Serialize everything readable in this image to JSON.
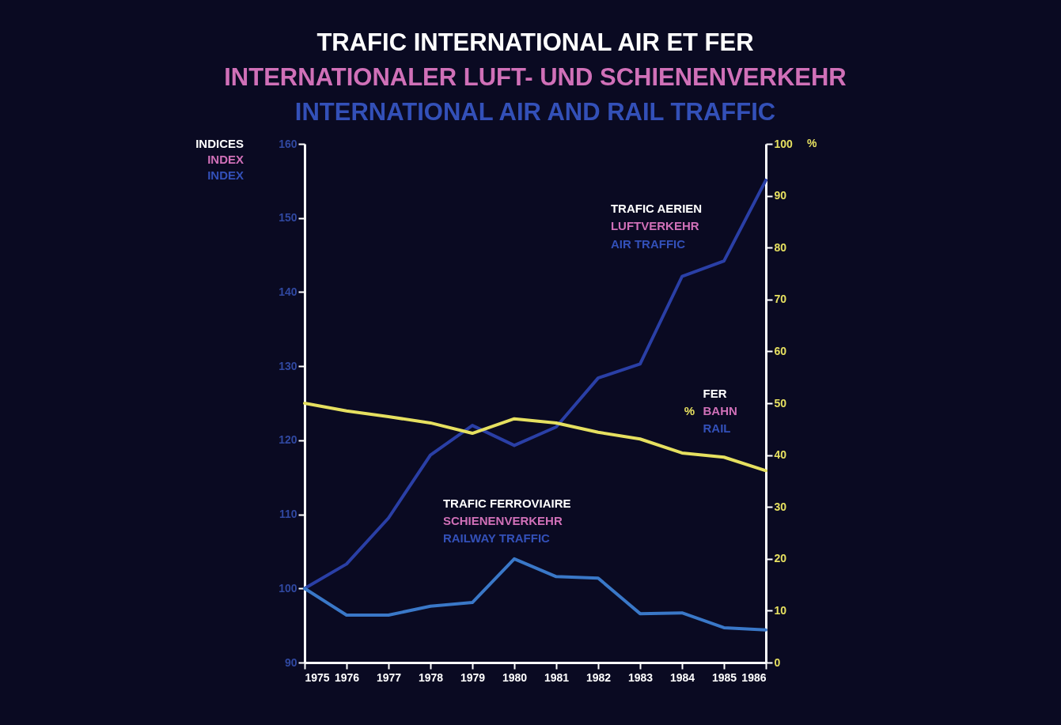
{
  "chart_data": {
    "type": "line",
    "title": "TRAFIC INTERNATIONAL AIR ET FER\nINTERNATIONALER LUFT- UND SCHIENENVERKEHR\nINTERNATIONAL AIR AND RAIL TRAFFIC",
    "ylabel": "INDICES\nINDEX\nINDEX",
    "y2label": "%",
    "x": [
      1975,
      1976,
      1977,
      1978,
      1979,
      1980,
      1981,
      1982,
      1983,
      1984,
      1985,
      1986
    ],
    "xlim": [
      1975,
      1986
    ],
    "xticks": [
      1975,
      1976,
      1977,
      1978,
      1979,
      1980,
      1981,
      1982,
      1983,
      1984,
      1985,
      1986
    ],
    "ylim": [
      90,
      160
    ],
    "yticks": [
      90,
      100,
      110,
      120,
      130,
      140,
      150,
      160
    ],
    "y2lim": [
      0,
      100
    ],
    "y2ticks": [
      0,
      10,
      20,
      30,
      40,
      50,
      60,
      70,
      80,
      90,
      100
    ],
    "series": [
      {
        "name": "TRAFIC AERIEN\nLUFTVERKEHR\nAIR TRAFFIC",
        "color": "#2a3fa6",
        "values": [
          100,
          103.3,
          109.5,
          118,
          122,
          119.3,
          121.8,
          128.4,
          130.3,
          142.1,
          144.2,
          155.1
        ]
      },
      {
        "name": "TRAFIC FERROVIAIRE\nSCHIENENVERKEHR\nRAILWAY TRAFFIC",
        "color": "#3a78c8",
        "values": [
          100,
          96.4,
          96.4,
          97.6,
          98.1,
          104,
          101.6,
          101.4,
          96.6,
          96.7,
          94.7,
          94.4
        ]
      },
      {
        "name": "FER\nBAHN\nRAIL",
        "color": "#e6e060",
        "axis": "y2",
        "values": [
          50,
          48.5,
          47.4,
          46.2,
          44.2,
          47,
          46.2,
          44.4,
          43.1,
          40.4,
          39.6,
          37
        ]
      }
    ]
  }
}
